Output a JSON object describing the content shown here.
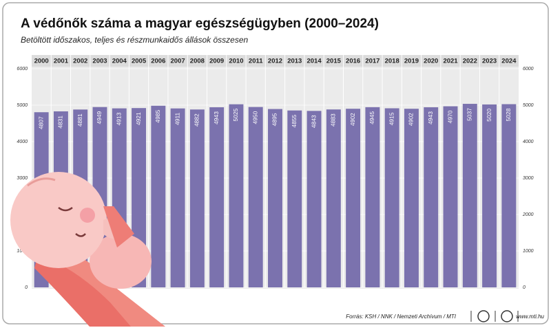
{
  "chart_data": {
    "type": "bar",
    "title": "A védőnők száma a magyar egészségügyben (2000–2024)",
    "subtitle": "Betöltött időszakos, teljes és részmunkaidős állások összesen",
    "categories": [
      "2000",
      "2001",
      "2002",
      "2003",
      "2004",
      "2005",
      "2006",
      "2007",
      "2008",
      "2009",
      "2010",
      "2011",
      "2012",
      "2013",
      "2014",
      "2015",
      "2016",
      "2017",
      "2018",
      "2019",
      "2020",
      "2021",
      "2022",
      "2023",
      "2024"
    ],
    "values": [
      4807,
      4831,
      4881,
      4949,
      4913,
      4921,
      4985,
      4911,
      4882,
      4943,
      5025,
      4950,
      4895,
      4855,
      4843,
      4883,
      4902,
      4945,
      4915,
      4902,
      4943,
      4970,
      5037,
      5020,
      5028
    ],
    "color": "#7b72ae",
    "ylim": [
      0,
      6000
    ],
    "yticks": [
      0,
      1000,
      2000,
      3000,
      4000,
      5000,
      6000
    ],
    "grid": true,
    "source": "Forrás: KSH / NNK / Nemzeti Archívum / MTI",
    "website": "www.mti.hu"
  }
}
